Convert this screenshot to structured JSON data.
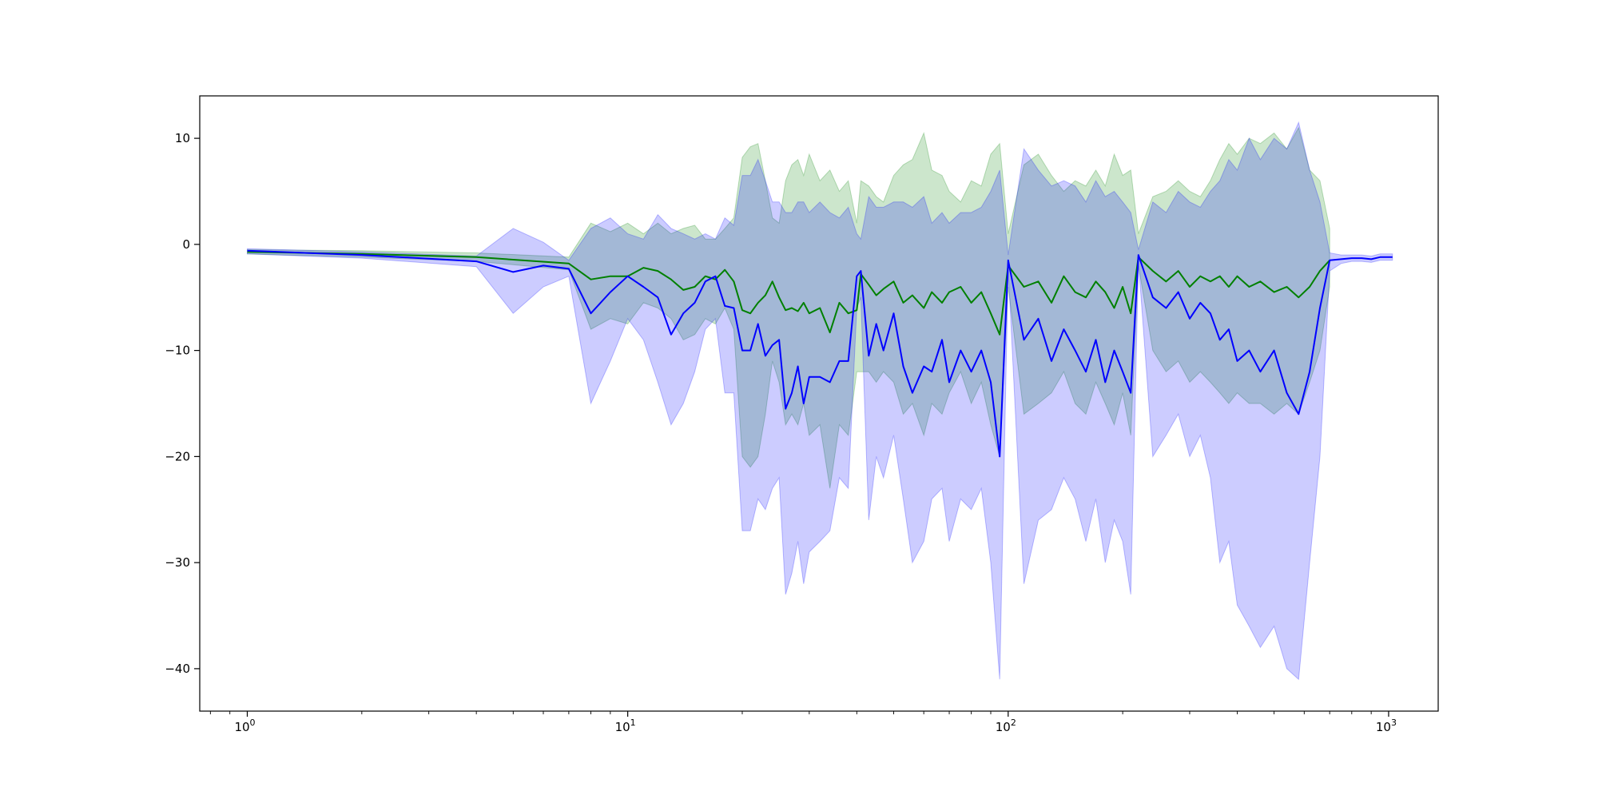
{
  "chart_data": {
    "type": "line",
    "title": "",
    "xlabel": "",
    "ylabel": "",
    "xscale": "log",
    "xlim": [
      0.75,
      1350
    ],
    "ylim": [
      -44,
      14
    ],
    "grid": false,
    "x_ticks": [
      {
        "value": 1,
        "base": "10",
        "exp": "0"
      },
      {
        "value": 10,
        "base": "10",
        "exp": "1"
      },
      {
        "value": 100,
        "base": "10",
        "exp": "2"
      },
      {
        "value": 1000,
        "base": "10",
        "exp": "3"
      }
    ],
    "y_ticks": [
      {
        "value": 10,
        "label": "10"
      },
      {
        "value": 0,
        "label": "0"
      },
      {
        "value": -10,
        "label": "−10"
      },
      {
        "value": -20,
        "label": "−20"
      },
      {
        "value": -30,
        "label": "−30"
      },
      {
        "value": -40,
        "label": "−40"
      }
    ],
    "colors": {
      "green_line": "#008000",
      "blue_line": "#0000ff",
      "green_band": "#008000",
      "blue_band": "#0000ff"
    },
    "series": [
      {
        "color": "#008000",
        "band_opacity": 0.2,
        "points": [
          [
            1,
            -0.7,
            -0.5,
            -0.9
          ],
          [
            2,
            -0.9,
            -0.6,
            -1.2
          ],
          [
            4,
            -1.2,
            -0.8,
            -1.6
          ],
          [
            7,
            -1.8,
            -1.2,
            -2.4
          ],
          [
            8,
            -3.3,
            2,
            -8
          ],
          [
            9,
            -3.0,
            1.2,
            -7
          ],
          [
            10,
            -3.0,
            2.0,
            -7.5
          ],
          [
            11,
            -2.2,
            1.0,
            -5.5
          ],
          [
            12,
            -2.5,
            2.0,
            -6
          ],
          [
            13,
            -3.3,
            1.0,
            -7
          ],
          [
            14,
            -4.3,
            1.5,
            -9
          ],
          [
            15,
            -4.0,
            1.8,
            -8.5
          ],
          [
            16,
            -3.0,
            0.5,
            -7
          ],
          [
            17,
            -3.3,
            0.5,
            -7.5
          ],
          [
            18,
            -2.4,
            1.5,
            -6
          ],
          [
            19,
            -3.5,
            2.5,
            -8
          ],
          [
            20,
            -6.2,
            8.2,
            -20
          ],
          [
            21,
            -6.5,
            9.2,
            -21
          ],
          [
            22,
            -5.5,
            9.5,
            -20
          ],
          [
            23,
            -4.8,
            6.0,
            -16
          ],
          [
            24,
            -3.5,
            2.5,
            -11
          ],
          [
            25,
            -5.0,
            2.0,
            -13
          ],
          [
            26,
            -6.2,
            6.0,
            -17
          ],
          [
            27,
            -6.0,
            7.5,
            -16
          ],
          [
            28,
            -6.3,
            8.0,
            -17
          ],
          [
            29,
            -5.5,
            6.5,
            -15
          ],
          [
            30,
            -6.5,
            8.5,
            -18
          ],
          [
            32,
            -6.0,
            6.0,
            -17
          ],
          [
            34,
            -8.3,
            7.0,
            -23
          ],
          [
            36,
            -5.5,
            5.0,
            -17
          ],
          [
            38,
            -6.5,
            6.0,
            -18
          ],
          [
            40,
            -6.2,
            2.0,
            -12
          ],
          [
            41,
            -2.8,
            6.0,
            -12
          ],
          [
            43,
            -3.8,
            5.5,
            -12
          ],
          [
            45,
            -4.8,
            4.5,
            -13
          ],
          [
            47,
            -4.2,
            4.0,
            -12
          ],
          [
            50,
            -3.5,
            6.5,
            -13
          ],
          [
            53,
            -5.5,
            7.5,
            -16
          ],
          [
            56,
            -4.8,
            8.0,
            -15
          ],
          [
            60,
            -6.0,
            10.5,
            -18
          ],
          [
            63,
            -4.5,
            7.0,
            -15
          ],
          [
            67,
            -5.5,
            6.5,
            -16
          ],
          [
            70,
            -4.5,
            5.0,
            -14
          ],
          [
            75,
            -4.0,
            4.0,
            -12
          ],
          [
            80,
            -5.5,
            6.0,
            -15
          ],
          [
            85,
            -4.5,
            5.5,
            -13
          ],
          [
            90,
            -6.5,
            8.5,
            -17
          ],
          [
            95,
            -8.5,
            9.5,
            -20
          ],
          [
            100,
            -2.0,
            1.0,
            -4
          ],
          [
            110,
            -4.0,
            7.5,
            -16
          ],
          [
            120,
            -3.5,
            8.5,
            -15
          ],
          [
            130,
            -5.5,
            6.5,
            -14
          ],
          [
            140,
            -3.0,
            5.0,
            -12
          ],
          [
            150,
            -4.5,
            6.0,
            -15
          ],
          [
            160,
            -5.0,
            5.5,
            -16
          ],
          [
            170,
            -3.5,
            7.0,
            -13
          ],
          [
            180,
            -4.5,
            5.5,
            -15
          ],
          [
            190,
            -6.0,
            8.5,
            -17
          ],
          [
            200,
            -4.0,
            6.5,
            -14
          ],
          [
            210,
            -6.5,
            7.0,
            -18
          ],
          [
            220,
            -1.2,
            1.0,
            -2
          ],
          [
            240,
            -2.5,
            4.5,
            -10
          ],
          [
            260,
            -3.5,
            5.0,
            -12
          ],
          [
            280,
            -2.5,
            6.0,
            -11
          ],
          [
            300,
            -4.0,
            5.0,
            -13
          ],
          [
            320,
            -3.0,
            4.5,
            -12
          ],
          [
            340,
            -3.5,
            6.0,
            -13
          ],
          [
            360,
            -3.0,
            8.0,
            -14
          ],
          [
            380,
            -4.0,
            9.5,
            -15
          ],
          [
            400,
            -3.0,
            8.5,
            -14
          ],
          [
            430,
            -4.0,
            10.0,
            -15
          ],
          [
            460,
            -3.5,
            9.5,
            -15
          ],
          [
            500,
            -4.5,
            10.5,
            -16
          ],
          [
            540,
            -4.0,
            9.0,
            -15
          ],
          [
            580,
            -5.0,
            11.0,
            -16
          ],
          [
            620,
            -4.0,
            7.0,
            -13
          ],
          [
            660,
            -2.5,
            6.0,
            -10
          ],
          [
            700,
            -1.5,
            1.5,
            -4
          ]
        ]
      },
      {
        "color": "#0000ff",
        "band_opacity": 0.2,
        "points": [
          [
            1,
            -0.6,
            -0.4,
            -0.9
          ],
          [
            2,
            -1.0,
            -0.7,
            -1.3
          ],
          [
            4,
            -1.6,
            -1.1,
            -2.1
          ],
          [
            5,
            -2.6,
            1.5,
            -6.5
          ],
          [
            6,
            -2.0,
            0.2,
            -4
          ],
          [
            7,
            -2.3,
            -1.5,
            -3
          ],
          [
            8,
            -6.5,
            1.5,
            -15
          ],
          [
            9,
            -4.5,
            2.5,
            -11
          ],
          [
            10,
            -3.0,
            1.0,
            -7
          ],
          [
            11,
            -4.0,
            0.5,
            -9
          ],
          [
            12,
            -5.0,
            2.8,
            -13
          ],
          [
            13,
            -8.5,
            1.5,
            -17
          ],
          [
            14,
            -6.5,
            1.0,
            -15
          ],
          [
            15,
            -5.5,
            0.5,
            -12
          ],
          [
            16,
            -3.5,
            1.0,
            -8
          ],
          [
            17,
            -3.0,
            0.5,
            -7
          ],
          [
            18,
            -5.8,
            2.5,
            -14
          ],
          [
            19,
            -6.0,
            1.8,
            -14
          ],
          [
            20,
            -10.0,
            6.5,
            -27
          ],
          [
            21,
            -10.0,
            6.5,
            -27
          ],
          [
            22,
            -7.5,
            8.0,
            -24
          ],
          [
            23,
            -10.5,
            6.0,
            -25
          ],
          [
            24,
            -9.5,
            4.0,
            -23
          ],
          [
            25,
            -9.0,
            4.0,
            -22
          ],
          [
            26,
            -15.5,
            3.0,
            -33
          ],
          [
            27,
            -14.0,
            3.0,
            -31
          ],
          [
            28,
            -11.5,
            4.0,
            -28
          ],
          [
            29,
            -15.0,
            4.0,
            -32
          ],
          [
            30,
            -12.5,
            3.0,
            -29
          ],
          [
            32,
            -12.5,
            4.0,
            -28
          ],
          [
            34,
            -13.0,
            3.0,
            -27
          ],
          [
            36,
            -11.0,
            2.5,
            -22
          ],
          [
            38,
            -11.0,
            3.5,
            -23
          ],
          [
            40,
            -3.0,
            1.0,
            -6
          ],
          [
            41,
            -2.5,
            0.5,
            -5
          ],
          [
            43,
            -10.5,
            4.5,
            -26
          ],
          [
            45,
            -7.5,
            3.5,
            -20
          ],
          [
            47,
            -10.0,
            3.5,
            -22
          ],
          [
            50,
            -6.5,
            4.0,
            -18
          ],
          [
            53,
            -11.5,
            4.0,
            -24
          ],
          [
            56,
            -14.0,
            3.5,
            -30
          ],
          [
            60,
            -11.5,
            4.5,
            -28
          ],
          [
            63,
            -12.0,
            2.0,
            -24
          ],
          [
            67,
            -9.0,
            3.0,
            -23
          ],
          [
            70,
            -13.0,
            2.0,
            -28
          ],
          [
            75,
            -10.0,
            3.0,
            -24
          ],
          [
            80,
            -12.0,
            3.0,
            -25
          ],
          [
            85,
            -10.0,
            3.5,
            -23
          ],
          [
            90,
            -13.0,
            5.0,
            -30
          ],
          [
            95,
            -20.0,
            7.0,
            -41
          ],
          [
            100,
            -1.5,
            -1.0,
            -2.2
          ],
          [
            110,
            -9.0,
            9.0,
            -32
          ],
          [
            120,
            -7.0,
            7.0,
            -26
          ],
          [
            130,
            -11.0,
            5.5,
            -25
          ],
          [
            140,
            -8.0,
            6.0,
            -22
          ],
          [
            150,
            -10.0,
            5.5,
            -24
          ],
          [
            160,
            -12.0,
            4.0,
            -28
          ],
          [
            170,
            -9.0,
            6.0,
            -24
          ],
          [
            180,
            -13.0,
            4.5,
            -30
          ],
          [
            190,
            -10.0,
            5.0,
            -26
          ],
          [
            200,
            -12.0,
            4.0,
            -28
          ],
          [
            210,
            -14.0,
            3.0,
            -33
          ],
          [
            220,
            -1.0,
            -0.5,
            -1.6
          ],
          [
            240,
            -5.0,
            4.0,
            -20
          ],
          [
            260,
            -6.0,
            3.0,
            -18
          ],
          [
            280,
            -4.5,
            5.0,
            -16
          ],
          [
            300,
            -7.0,
            4.0,
            -20
          ],
          [
            320,
            -5.5,
            3.5,
            -18
          ],
          [
            340,
            -6.5,
            5.0,
            -22
          ],
          [
            360,
            -9.0,
            6.0,
            -30
          ],
          [
            380,
            -8.0,
            8.0,
            -28
          ],
          [
            400,
            -11.0,
            7.0,
            -34
          ],
          [
            430,
            -10.0,
            10.0,
            -36
          ],
          [
            460,
            -12.0,
            8.0,
            -38
          ],
          [
            500,
            -10.0,
            10.0,
            -36
          ],
          [
            540,
            -14.0,
            9.0,
            -40
          ],
          [
            580,
            -16.0,
            11.5,
            -41
          ],
          [
            620,
            -12.0,
            7.0,
            -30
          ],
          [
            660,
            -6.0,
            4.0,
            -20
          ],
          [
            700,
            -1.5,
            -0.8,
            -2.5
          ],
          [
            750,
            -1.4,
            -1.0,
            -1.8
          ],
          [
            800,
            -1.3,
            -1.0,
            -1.6
          ],
          [
            850,
            -1.3,
            -1.0,
            -1.6
          ],
          [
            900,
            -1.4,
            -1.1,
            -1.7
          ],
          [
            950,
            -1.2,
            -0.9,
            -1.5
          ],
          [
            1000,
            -1.2,
            -0.9,
            -1.5
          ],
          [
            1024,
            -1.2,
            -0.9,
            -1.5
          ]
        ]
      }
    ]
  }
}
